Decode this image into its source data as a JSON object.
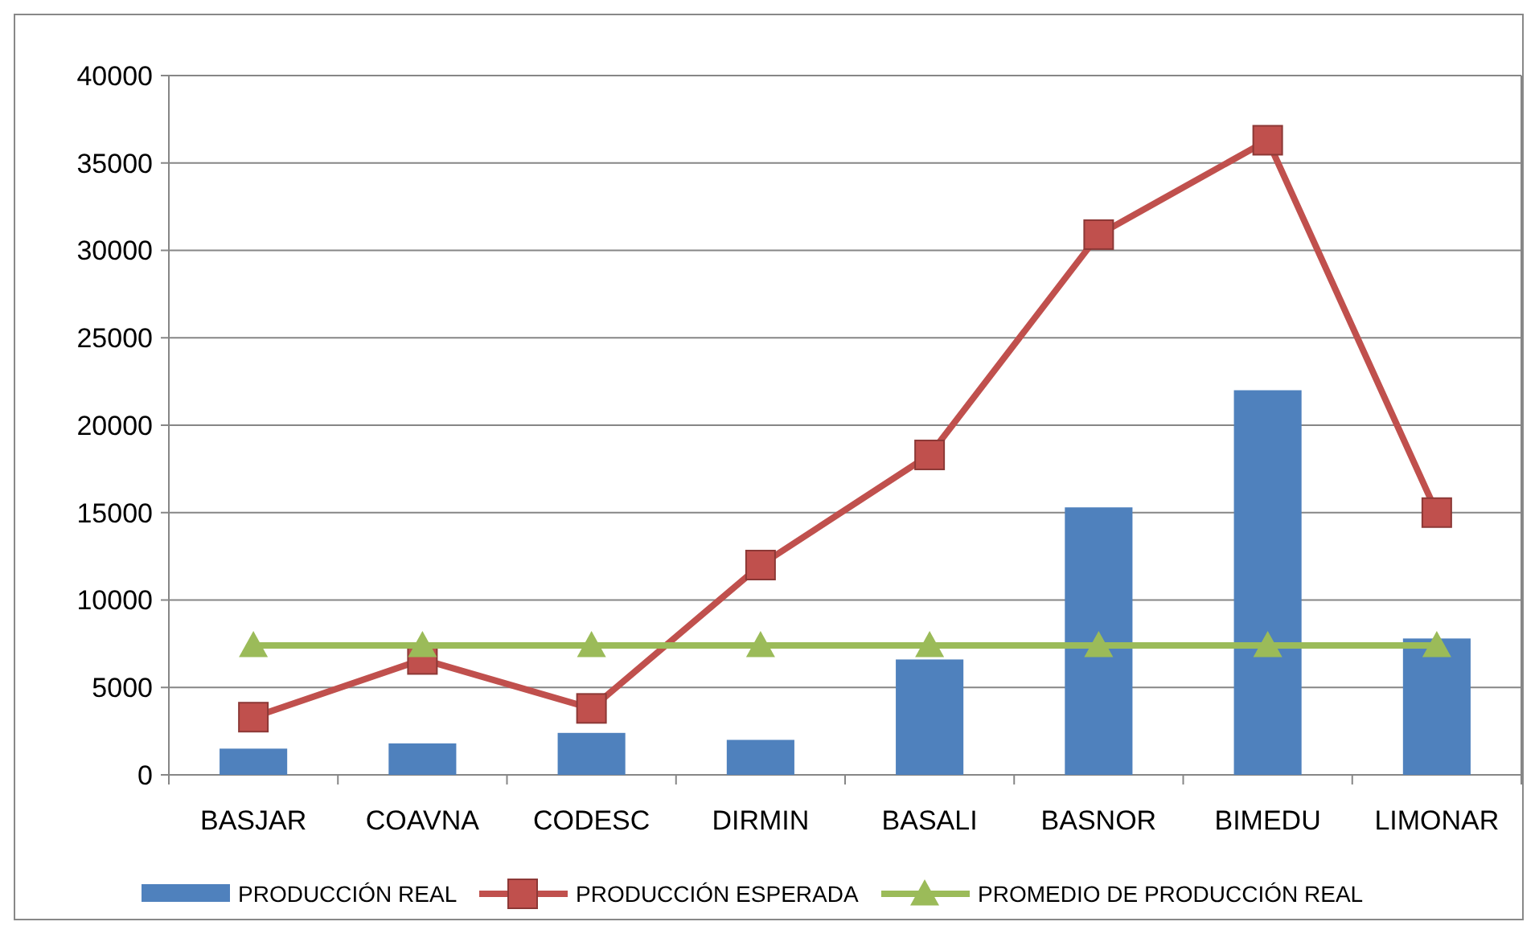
{
  "chart_data": {
    "type": "bar",
    "categories": [
      "BASJAR",
      "COAVNA",
      "CODESC",
      "DIRMIN",
      "BASALI",
      "BASNOR",
      "BIMEDU",
      "LIMONAR"
    ],
    "series": [
      {
        "name": "PRODUCCIÓN REAL",
        "color": "#4f81bd",
        "values": [
          1500,
          1800,
          2400,
          2000,
          6600,
          15300,
          22000,
          7800
        ]
      },
      {
        "name": "PRODUCCIÓN ESPERADA",
        "type": "line",
        "color": "#c0504d",
        "marker": "square",
        "values": [
          3300,
          6600,
          3800,
          12000,
          18300,
          30900,
          36300,
          15000
        ]
      },
      {
        "name": "PROMEDIO DE PRODUCCIÓN REAL",
        "type": "line",
        "color": "#9bbb59",
        "marker": "triangle",
        "values": [
          7400,
          7400,
          7400,
          7400,
          7400,
          7400,
          7400,
          7400
        ]
      }
    ],
    "ylim": [
      0,
      40000
    ],
    "yticks": [
      0,
      5000,
      10000,
      15000,
      20000,
      25000,
      30000,
      35000,
      40000
    ],
    "grid": "y",
    "legend": "bottom",
    "line_style": "solid"
  }
}
